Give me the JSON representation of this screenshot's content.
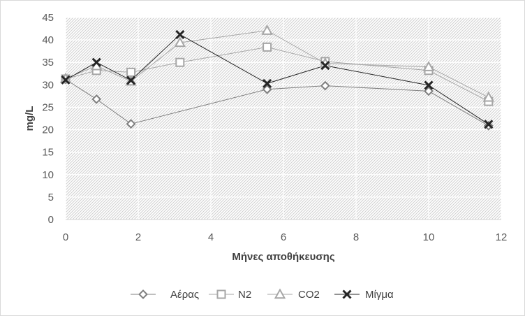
{
  "chart_data": {
    "type": "line",
    "title": "",
    "xlabel": "Μήνες αποθήκευσης",
    "ylabel": "mg/L",
    "xlim": [
      0,
      12
    ],
    "ylim": [
      0,
      45
    ],
    "xticks": [
      0,
      2,
      4,
      6,
      8,
      10,
      12
    ],
    "yticks": [
      0,
      5,
      10,
      15,
      20,
      25,
      30,
      35,
      40,
      45
    ],
    "grid": true,
    "legend_position": "bottom",
    "series": [
      {
        "name": "Αέρας",
        "marker": "diamond",
        "color": "#7f7f7f",
        "points": [
          [
            0,
            31.2
          ],
          [
            0.85,
            26.8
          ],
          [
            1.8,
            21.3
          ],
          [
            5.55,
            29.0
          ],
          [
            7.15,
            29.8
          ],
          [
            10.0,
            28.6
          ],
          [
            11.65,
            20.9
          ]
        ]
      },
      {
        "name": "N2",
        "marker": "square",
        "color": "#a6a6a6",
        "points": [
          [
            0,
            31.3
          ],
          [
            0.85,
            33.2
          ],
          [
            1.8,
            32.8
          ],
          [
            3.15,
            35.0
          ],
          [
            5.55,
            38.4
          ],
          [
            7.15,
            35.2
          ],
          [
            10.0,
            33.2
          ],
          [
            11.65,
            26.3
          ]
        ]
      },
      {
        "name": "CO2",
        "marker": "triangle",
        "color": "#a6a6a6",
        "points": [
          [
            0,
            31.4
          ],
          [
            0.85,
            34.2
          ],
          [
            1.8,
            30.8
          ],
          [
            3.15,
            39.4
          ],
          [
            5.55,
            42.1
          ],
          [
            7.15,
            34.8
          ],
          [
            10.0,
            34.0
          ],
          [
            11.65,
            27.2
          ]
        ]
      },
      {
        "name": "Μίγμα",
        "marker": "x",
        "color": "#262626",
        "points": [
          [
            0,
            31.1
          ],
          [
            0.85,
            35.0
          ],
          [
            1.8,
            31.0
          ],
          [
            3.15,
            41.2
          ],
          [
            5.55,
            30.3
          ],
          [
            7.15,
            34.3
          ],
          [
            10.0,
            29.9
          ],
          [
            11.65,
            21.2
          ]
        ]
      }
    ]
  }
}
